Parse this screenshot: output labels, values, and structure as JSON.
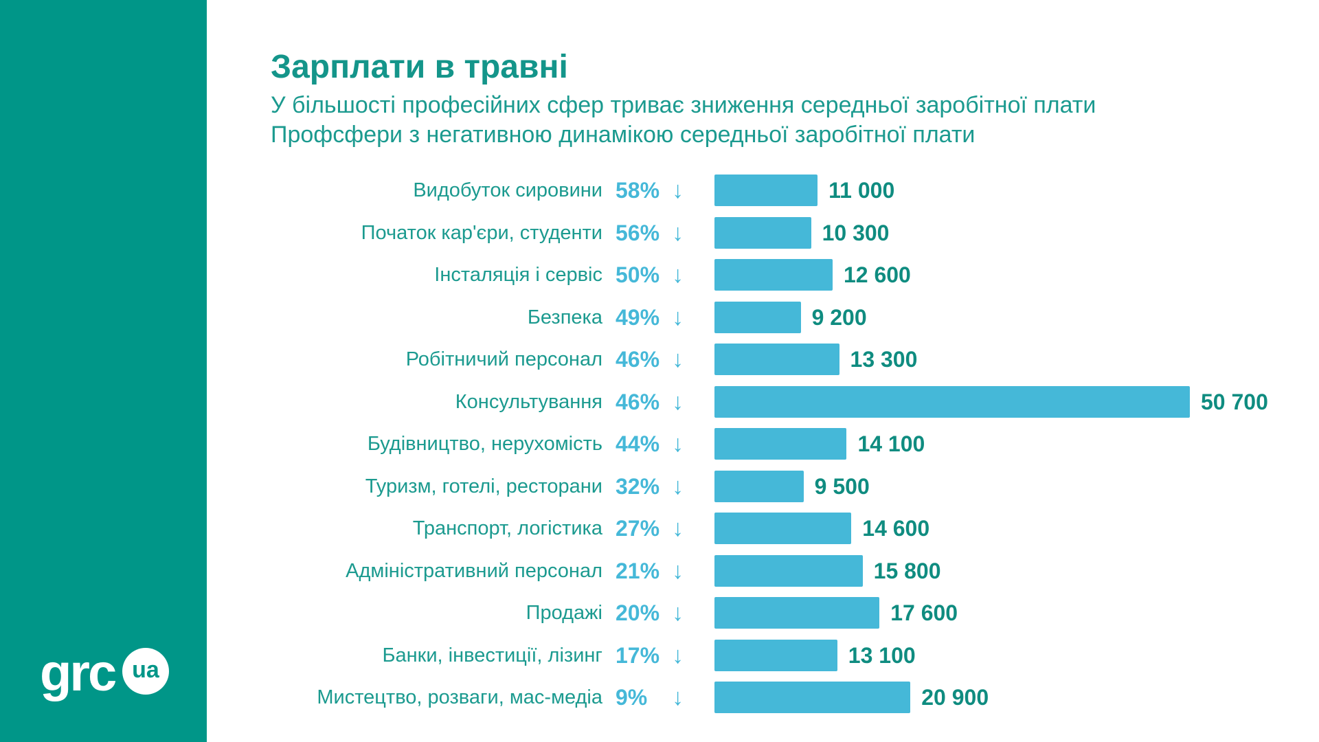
{
  "logo": {
    "text": "grc",
    "badge": "ua"
  },
  "colors": {
    "sidebar": "#009688",
    "bar": "#45b8d8",
    "value_text": "#0f8c80",
    "label_text": "#1b9a8f"
  },
  "chart_data": {
    "type": "bar",
    "orientation": "horizontal",
    "title": "Зарплати в травні",
    "subtitle": "У більшості професійних сфер триває зниження середньої заробітної плати",
    "subtitle2": "Профсфери з негативною динамікою середньої заробітної плати",
    "categories": [
      "Видобуток сировини",
      "Початок кар'єри, студенти",
      "Інсталяція і сервіс",
      "Безпека",
      "Робітничий персонал",
      "Консультування",
      "Будівництво, нерухомість",
      "Туризм, готелі, ресторани",
      "Транспорт, логістика",
      "Адміністративний персонал",
      "Продажі",
      "Банки, інвестиції, лізинг",
      "Мистецтво, розваги, мас-медіа"
    ],
    "percent_labels": [
      "58%",
      "56%",
      "50%",
      "49%",
      "46%",
      "46%",
      "44%",
      "32%",
      "27%",
      "21%",
      "20%",
      "17%",
      "9%"
    ],
    "value_labels": [
      "11 000",
      "10 300",
      "12 600",
      "9 200",
      "13 300",
      "50 700",
      "14 100",
      "9 500",
      "14 600",
      "15 800",
      "17 600",
      "13 100",
      "20 900"
    ],
    "values": [
      11000,
      10300,
      12600,
      9200,
      13300,
      50700,
      14100,
      9500,
      14600,
      15800,
      17600,
      13100,
      20900
    ],
    "arrow": "↓",
    "grid": false,
    "legend": "none"
  }
}
